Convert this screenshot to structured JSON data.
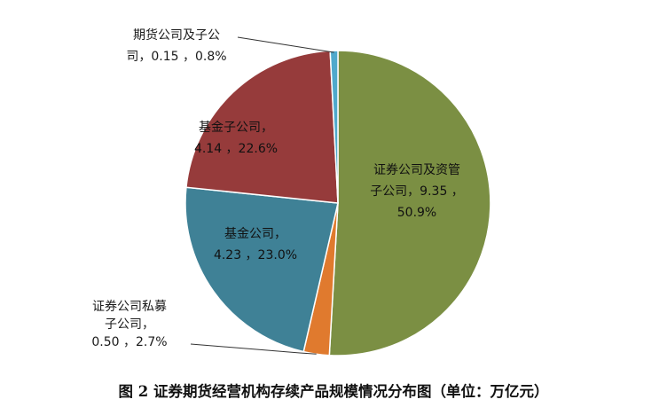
{
  "chart_data": {
    "type": "pie",
    "title": "",
    "caption": "图 2 证券期货经营机构存续产品规模情况分布图（单位：万亿元）",
    "slices": [
      {
        "name": "证券公司及资管子公司",
        "value": 9.35,
        "percent": "50.9%",
        "color": "#7b8f43",
        "label_lines": [
          "证券公司及资管",
          "子公司，9.35 ，",
          "50.9%"
        ]
      },
      {
        "name": "证券公司私募子公司",
        "value": 0.5,
        "percent": "2.7%",
        "color": "#e07a2e",
        "label_lines": [
          "证券公司私募",
          "子公司，",
          "0.50 ，2.7%"
        ]
      },
      {
        "name": "基金公司",
        "value": 4.23,
        "percent": "23.0%",
        "color": "#3f8196",
        "label_lines": [
          "基金公司，",
          "4.23 ，23.0%"
        ]
      },
      {
        "name": "基金子公司",
        "value": 4.14,
        "percent": "22.6%",
        "color": "#963b3b",
        "label_lines": [
          "基金子公司，",
          "4.14 ，22.6%"
        ]
      },
      {
        "name": "期货公司及子公司",
        "value": 0.15,
        "percent": "0.8%",
        "color": "#4fa9cc",
        "label_lines": [
          "期货公司及子公",
          "司，0.15 ，0.8%"
        ]
      }
    ]
  }
}
